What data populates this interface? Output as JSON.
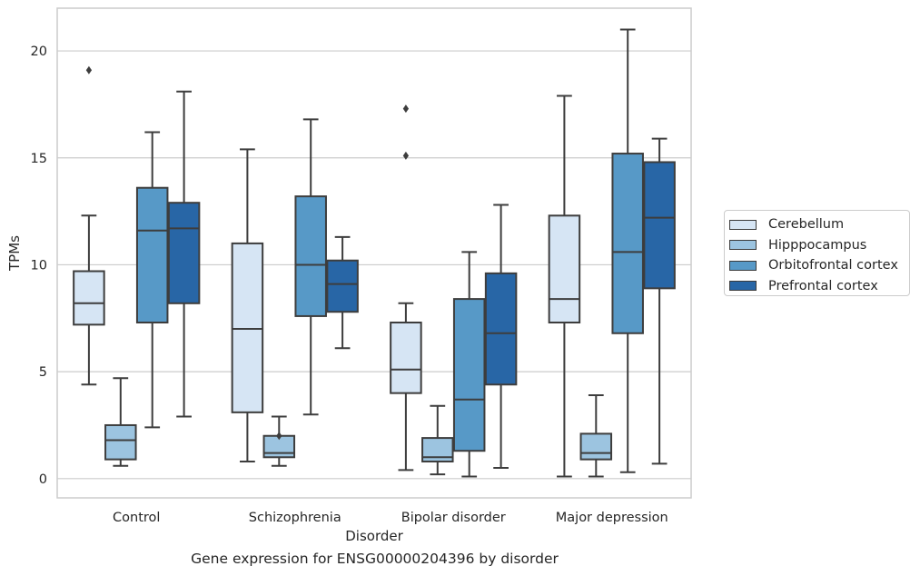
{
  "chart_data": {
    "type": "box",
    "caption": "Gene expression for ENSG00000204396 by disorder",
    "xlabel": "Disorder",
    "ylabel": "TPMs",
    "ylim": [
      -0.9,
      22
    ],
    "yticks": [
      0,
      5,
      10,
      15,
      20
    ],
    "grid": true,
    "legend_position": "right",
    "categories": [
      "Control",
      "Schizophrenia",
      "Bipolar disorder",
      "Major depression"
    ],
    "series": [
      {
        "name": "Cerebellum",
        "color": "#d6e5f4",
        "boxes": [
          {
            "whislo": 4.4,
            "q1": 7.2,
            "med": 8.2,
            "q3": 9.7,
            "whishi": 12.3,
            "fliers": [
              19.1
            ]
          },
          {
            "whislo": 0.8,
            "q1": 3.1,
            "med": 7.0,
            "q3": 11.0,
            "whishi": 15.4,
            "fliers": []
          },
          {
            "whislo": 0.4,
            "q1": 4.0,
            "med": 5.1,
            "q3": 7.3,
            "whishi": 8.2,
            "fliers": [
              15.1,
              17.3
            ]
          },
          {
            "whislo": 0.1,
            "q1": 7.3,
            "med": 8.4,
            "q3": 12.3,
            "whishi": 17.9,
            "fliers": []
          }
        ]
      },
      {
        "name": "Hipppocampus",
        "color": "#9cc4e0",
        "boxes": [
          {
            "whislo": 0.6,
            "q1": 0.9,
            "med": 1.8,
            "q3": 2.5,
            "whishi": 4.7,
            "fliers": []
          },
          {
            "whislo": 0.6,
            "q1": 1.0,
            "med": 1.2,
            "q3": 2.0,
            "whishi": 2.9,
            "fliers": [
              2.0
            ]
          },
          {
            "whislo": 0.2,
            "q1": 0.8,
            "med": 1.0,
            "q3": 1.9,
            "whishi": 3.4,
            "fliers": []
          },
          {
            "whislo": 0.1,
            "q1": 0.9,
            "med": 1.2,
            "q3": 2.1,
            "whishi": 3.9,
            "fliers": []
          }
        ]
      },
      {
        "name": "Orbitofrontal cortex",
        "color": "#5799c7",
        "boxes": [
          {
            "whislo": 2.4,
            "q1": 7.3,
            "med": 11.6,
            "q3": 13.6,
            "whishi": 16.2,
            "fliers": []
          },
          {
            "whislo": 3.0,
            "q1": 7.6,
            "med": 10.0,
            "q3": 13.2,
            "whishi": 16.8,
            "fliers": []
          },
          {
            "whislo": 0.1,
            "q1": 1.3,
            "med": 3.7,
            "q3": 8.4,
            "whishi": 10.6,
            "fliers": []
          },
          {
            "whislo": 0.3,
            "q1": 6.8,
            "med": 10.6,
            "q3": 15.2,
            "whishi": 21.0,
            "fliers": []
          }
        ]
      },
      {
        "name": "Prefrontal cortex",
        "color": "#2866a6",
        "boxes": [
          {
            "whislo": 2.9,
            "q1": 8.2,
            "med": 11.7,
            "q3": 12.9,
            "whishi": 18.1,
            "fliers": []
          },
          {
            "whislo": 6.1,
            "q1": 7.8,
            "med": 9.1,
            "q3": 10.2,
            "whishi": 11.3,
            "fliers": []
          },
          {
            "whislo": 0.5,
            "q1": 4.4,
            "med": 6.8,
            "q3": 9.6,
            "whishi": 12.8,
            "fliers": []
          },
          {
            "whislo": 0.7,
            "q1": 8.9,
            "med": 12.2,
            "q3": 14.8,
            "whishi": 15.9,
            "fliers": []
          }
        ]
      }
    ]
  }
}
